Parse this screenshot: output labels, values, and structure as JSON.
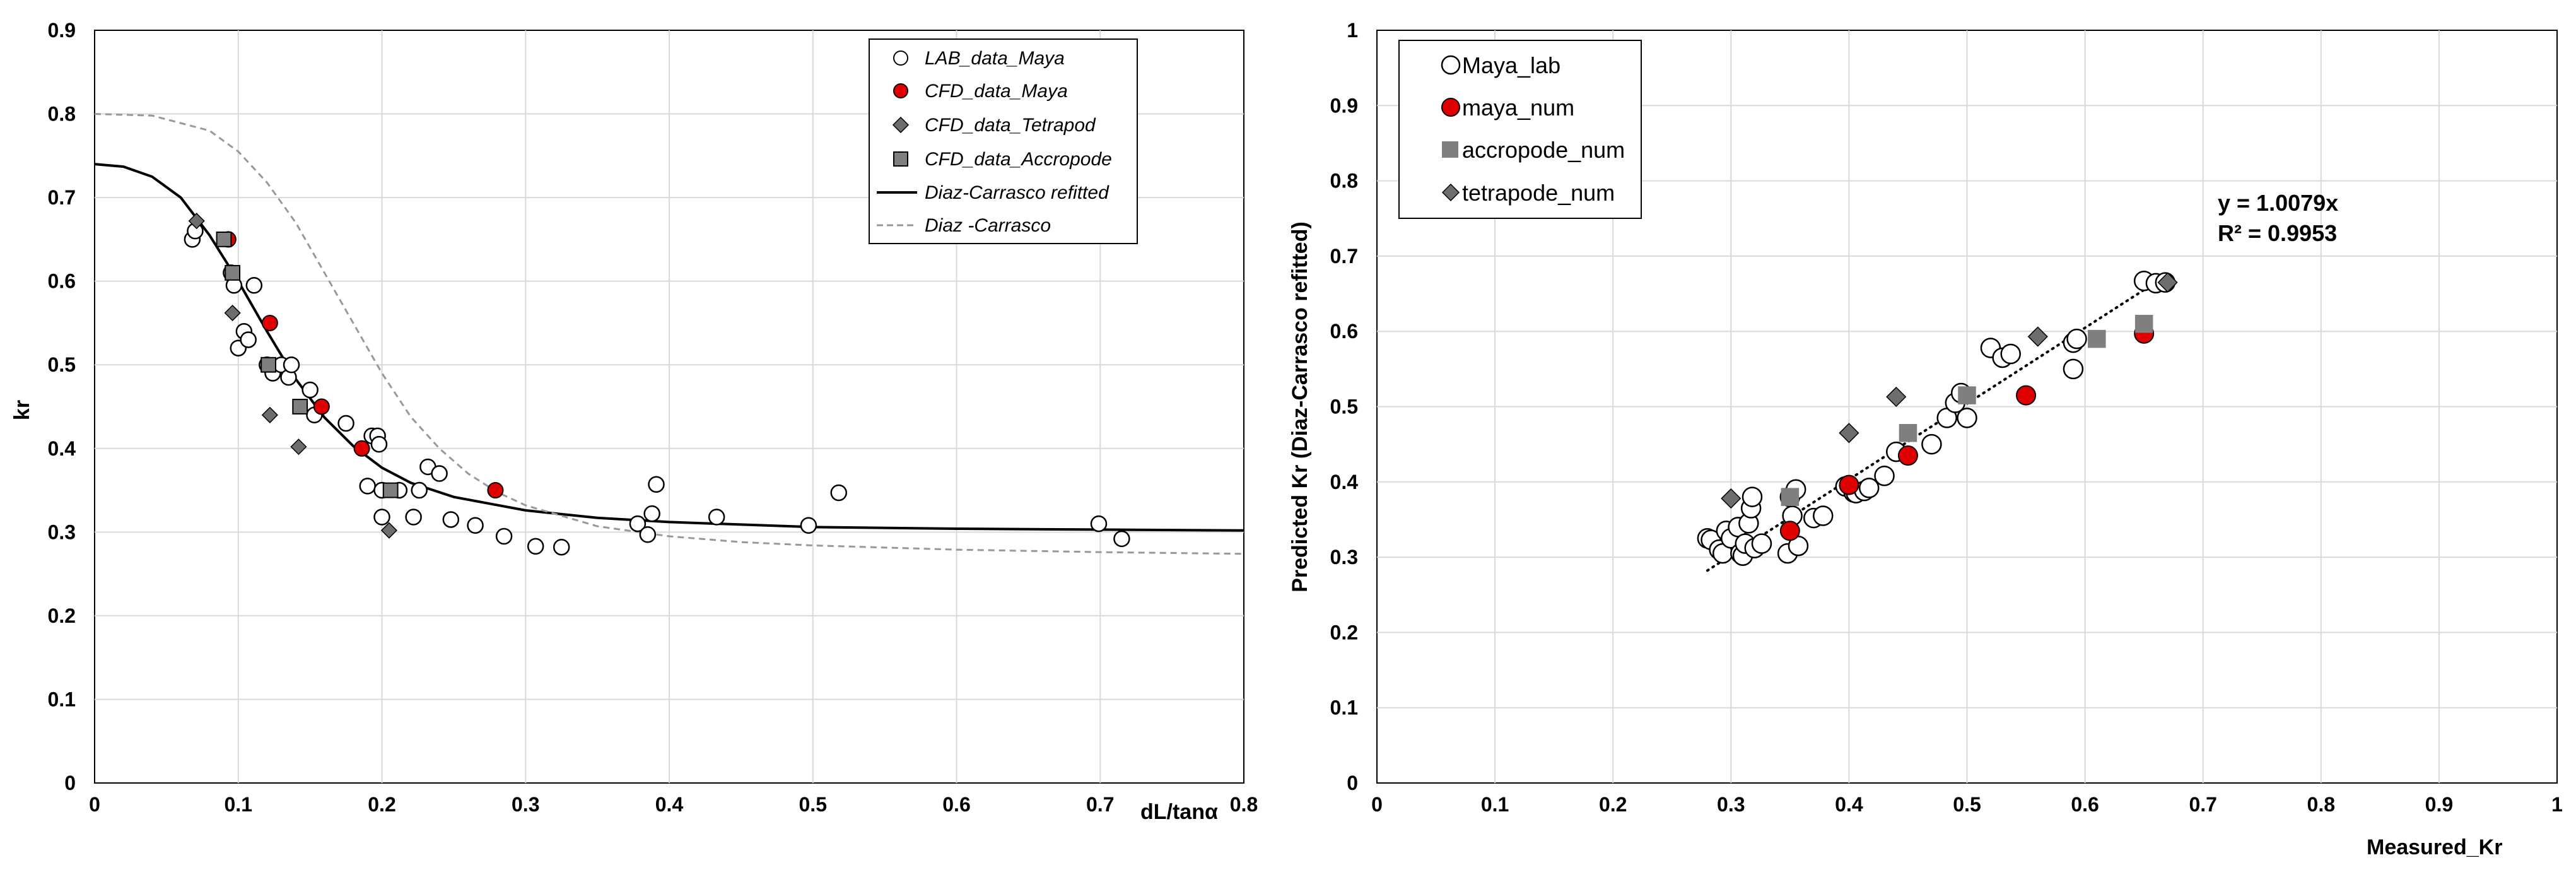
{
  "chart_data": [
    {
      "type": "scatter",
      "title": "",
      "xlabel": "dL/tanα",
      "ylabel": "kr",
      "xlim": [
        0,
        0.8
      ],
      "ylim": [
        0,
        0.9
      ],
      "x_ticks": [
        "0",
        "0.1",
        "0.2",
        "0.3",
        "0.4",
        "0.5",
        "0.6",
        "0.7",
        "0.8"
      ],
      "y_ticks": [
        "0",
        "0.1",
        "0.2",
        "0.3",
        "0.4",
        "0.5",
        "0.6",
        "0.7",
        "0.8",
        "0.9"
      ],
      "grid": true,
      "legend_position": "top-right",
      "series": [
        {
          "name": "LAB_data_Maya",
          "marker": "open-circle",
          "color": "#ffffff",
          "points": [
            [
              0.068,
              0.65
            ],
            [
              0.07,
              0.66
            ],
            [
              0.095,
              0.61
            ],
            [
              0.097,
              0.595
            ],
            [
              0.1,
              0.52
            ],
            [
              0.104,
              0.54
            ],
            [
              0.107,
              0.53
            ],
            [
              0.111,
              0.595
            ],
            [
              0.12,
              0.5
            ],
            [
              0.124,
              0.49
            ],
            [
              0.13,
              0.5
            ],
            [
              0.135,
              0.485
            ],
            [
              0.137,
              0.5
            ],
            [
              0.15,
              0.47
            ],
            [
              0.153,
              0.44
            ],
            [
              0.175,
              0.43
            ],
            [
              0.19,
              0.355
            ],
            [
              0.193,
              0.415
            ],
            [
              0.197,
              0.415
            ],
            [
              0.198,
              0.405
            ],
            [
              0.2,
              0.35
            ],
            [
              0.2,
              0.318
            ],
            [
              0.212,
              0.35
            ],
            [
              0.222,
              0.318
            ],
            [
              0.226,
              0.35
            ],
            [
              0.232,
              0.378
            ],
            [
              0.24,
              0.37
            ],
            [
              0.248,
              0.315
            ],
            [
              0.265,
              0.308
            ],
            [
              0.285,
              0.295
            ],
            [
              0.307,
              0.283
            ],
            [
              0.325,
              0.282
            ],
            [
              0.378,
              0.31
            ],
            [
              0.385,
              0.297
            ],
            [
              0.388,
              0.322
            ],
            [
              0.391,
              0.357
            ],
            [
              0.433,
              0.318
            ],
            [
              0.497,
              0.308
            ],
            [
              0.518,
              0.347
            ],
            [
              0.699,
              0.31
            ],
            [
              0.715,
              0.292
            ]
          ]
        },
        {
          "name": "CFD_data_Maya",
          "marker": "filled-circle",
          "color": "#e00000",
          "points": [
            [
              0.093,
              0.65
            ],
            [
              0.122,
              0.55
            ],
            [
              0.158,
              0.45
            ],
            [
              0.186,
              0.4
            ],
            [
              0.279,
              0.35
            ]
          ]
        },
        {
          "name": "CFD_data_Tetrapod",
          "marker": "diamond",
          "color": "#6d6d6d",
          "points": [
            [
              0.071,
              0.672
            ],
            [
              0.096,
              0.562
            ],
            [
              0.122,
              0.44
            ],
            [
              0.142,
              0.402
            ],
            [
              0.205,
              0.302
            ]
          ]
        },
        {
          "name": "CFD_data_Accropode",
          "marker": "square",
          "color": "#7f7f7f",
          "points": [
            [
              0.09,
              0.65
            ],
            [
              0.096,
              0.61
            ],
            [
              0.121,
              0.5
            ],
            [
              0.143,
              0.45
            ],
            [
              0.206,
              0.35
            ]
          ]
        },
        {
          "name": "Diaz-Carrasco refitted",
          "marker": "line-solid",
          "color": "#000000",
          "x": [
            0,
            0.02,
            0.04,
            0.06,
            0.08,
            0.1,
            0.12,
            0.14,
            0.16,
            0.18,
            0.2,
            0.22,
            0.25,
            0.3,
            0.35,
            0.4,
            0.5,
            0.6,
            0.7,
            0.8
          ],
          "y": [
            0.74,
            0.737,
            0.725,
            0.7,
            0.655,
            0.6,
            0.54,
            0.483,
            0.437,
            0.403,
            0.377,
            0.359,
            0.342,
            0.326,
            0.317,
            0.312,
            0.306,
            0.304,
            0.303,
            0.302
          ]
        },
        {
          "name": "Diaz -Carrasco",
          "marker": "line-dashed",
          "color": "#999999",
          "x": [
            0,
            0.04,
            0.08,
            0.1,
            0.12,
            0.14,
            0.16,
            0.18,
            0.2,
            0.22,
            0.24,
            0.26,
            0.28,
            0.3,
            0.35,
            0.4,
            0.45,
            0.5,
            0.6,
            0.7,
            0.8
          ],
          "y": [
            0.8,
            0.798,
            0.78,
            0.755,
            0.718,
            0.67,
            0.61,
            0.55,
            0.49,
            0.438,
            0.4,
            0.37,
            0.348,
            0.332,
            0.307,
            0.295,
            0.288,
            0.284,
            0.279,
            0.276,
            0.274
          ]
        }
      ]
    },
    {
      "type": "scatter",
      "title": "",
      "xlabel": "Measured_Kr",
      "ylabel": "Predicted Kr (Diaz-Carrasco refitted)",
      "xlim": [
        0,
        1
      ],
      "ylim": [
        0,
        1
      ],
      "x_ticks": [
        "0",
        "0.1",
        "0.2",
        "0.3",
        "0.4",
        "0.5",
        "0.6",
        "0.7",
        "0.8",
        "0.9",
        "1"
      ],
      "y_ticks": [
        "0",
        "0.1",
        "0.2",
        "0.3",
        "0.4",
        "0.5",
        "0.6",
        "0.7",
        "0.8",
        "0.9",
        "1"
      ],
      "grid": true,
      "legend_position": "top-left",
      "annotation": [
        "y = 1.0079x",
        "R² = 0.9953"
      ],
      "trendline": {
        "slope": 1.0079,
        "x_range": [
          0.28,
          0.67
        ],
        "style": "dotted"
      },
      "series": [
        {
          "name": "Maya_lab",
          "marker": "open-circle",
          "color": "#ffffff",
          "points": [
            [
              0.28,
              0.325
            ],
            [
              0.283,
              0.323
            ],
            [
              0.29,
              0.31
            ],
            [
              0.293,
              0.305
            ],
            [
              0.296,
              0.335
            ],
            [
              0.3,
              0.325
            ],
            [
              0.306,
              0.34
            ],
            [
              0.308,
              0.305
            ],
            [
              0.31,
              0.302
            ],
            [
              0.312,
              0.318
            ],
            [
              0.315,
              0.345
            ],
            [
              0.317,
              0.365
            ],
            [
              0.318,
              0.38
            ],
            [
              0.32,
              0.312
            ],
            [
              0.326,
              0.318
            ],
            [
              0.348,
              0.305
            ],
            [
              0.35,
              0.38
            ],
            [
              0.352,
              0.355
            ],
            [
              0.355,
              0.39
            ],
            [
              0.357,
              0.315
            ],
            [
              0.37,
              0.352
            ],
            [
              0.378,
              0.355
            ],
            [
              0.397,
              0.394
            ],
            [
              0.404,
              0.386
            ],
            [
              0.406,
              0.385
            ],
            [
              0.413,
              0.388
            ],
            [
              0.417,
              0.392
            ],
            [
              0.43,
              0.408
            ],
            [
              0.44,
              0.44
            ],
            [
              0.47,
              0.45
            ],
            [
              0.483,
              0.485
            ],
            [
              0.49,
              0.505
            ],
            [
              0.495,
              0.518
            ],
            [
              0.5,
              0.485
            ],
            [
              0.52,
              0.578
            ],
            [
              0.53,
              0.565
            ],
            [
              0.537,
              0.57
            ],
            [
              0.59,
              0.55
            ],
            [
              0.59,
              0.585
            ],
            [
              0.593,
              0.59
            ],
            [
              0.65,
              0.667
            ],
            [
              0.66,
              0.664
            ],
            [
              0.668,
              0.665
            ]
          ]
        },
        {
          "name": "maya_num",
          "marker": "filled-circle",
          "color": "#e00000",
          "points": [
            [
              0.35,
              0.335
            ],
            [
              0.4,
              0.396
            ],
            [
              0.45,
              0.435
            ],
            [
              0.55,
              0.515
            ],
            [
              0.65,
              0.597
            ]
          ]
        },
        {
          "name": "accropode_num",
          "marker": "square",
          "color": "#7f7f7f",
          "points": [
            [
              0.35,
              0.38
            ],
            [
              0.45,
              0.465
            ],
            [
              0.5,
              0.515
            ],
            [
              0.61,
              0.59
            ],
            [
              0.65,
              0.61
            ]
          ]
        },
        {
          "name": "tetrapode_num",
          "marker": "diamond",
          "color": "#6d6d6d",
          "points": [
            [
              0.3,
              0.378
            ],
            [
              0.4,
              0.465
            ],
            [
              0.44,
              0.513
            ],
            [
              0.56,
              0.593
            ],
            [
              0.67,
              0.665
            ]
          ]
        }
      ]
    }
  ]
}
